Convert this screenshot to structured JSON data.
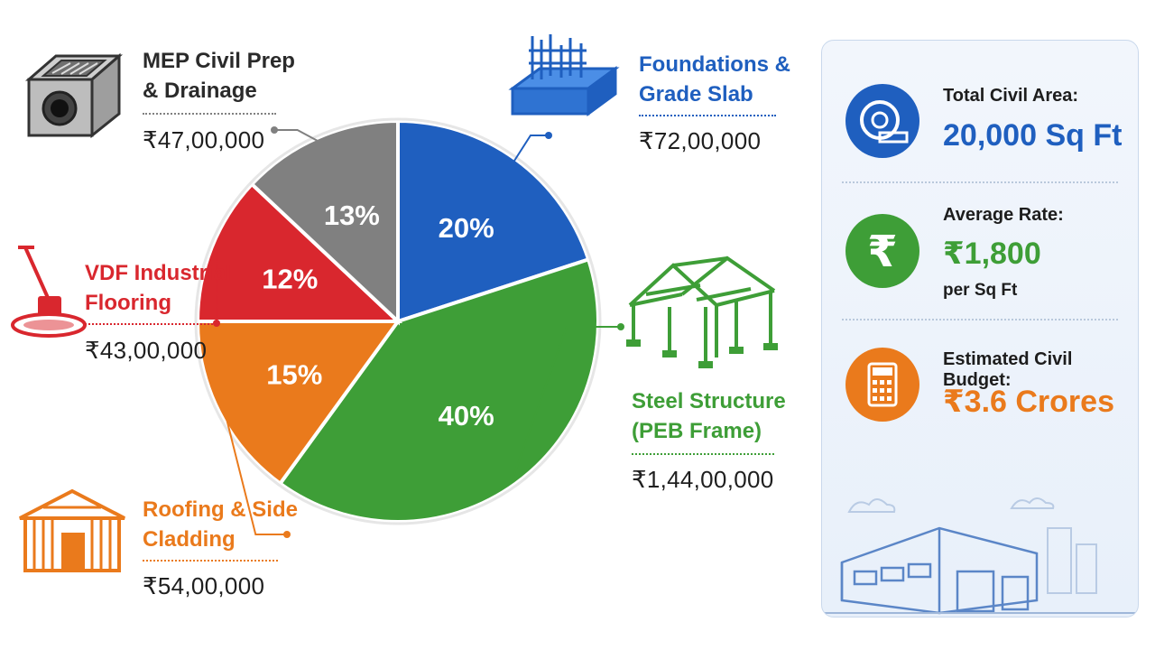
{
  "colors": {
    "blue": "#1f5fbf",
    "green": "#3e9e37",
    "orange": "#ea7a1c",
    "red": "#d9272e",
    "gray": "#808080"
  },
  "chart_data": {
    "type": "pie",
    "slices": [
      {
        "label": "Foundations & Grade Slab",
        "value": 20,
        "percent_label": "20%",
        "amount": "₹72,00,000",
        "color": "#1f5fbf",
        "icon": "foundation-rebar-icon"
      },
      {
        "label": "Steel Structure (PEB Frame)",
        "value": 40,
        "percent_label": "40%",
        "amount": "₹1,44,00,000",
        "color": "#3e9e37",
        "icon": "steel-frame-icon"
      },
      {
        "label": "Roofing & Side Cladding",
        "value": 15,
        "percent_label": "15%",
        "amount": "₹54,00,000",
        "color": "#ea7a1c",
        "icon": "shed-cladding-icon"
      },
      {
        "label": "VDF Industrial Flooring",
        "value": 12,
        "percent_label": "12%",
        "amount": "₹43,00,000",
        "color": "#d9272e",
        "icon": "floor-trowel-icon"
      },
      {
        "label": "MEP Civil Prep & Drainage",
        "value": 13,
        "percent_label": "13%",
        "amount": "₹47,00,000",
        "color": "#808080",
        "icon": "drain-chamber-icon"
      }
    ]
  },
  "labels": {
    "foundations": "Foundations &\nGrade Slab",
    "steel": "Steel Structure\n(PEB Frame)",
    "roofing": "Roofing & Side\nCladding",
    "vdf": "VDF Industrial\nFlooring",
    "mep": "MEP Civil Prep\n& Drainage"
  },
  "summary": {
    "area": {
      "label": "Total Civil Area:",
      "value": "20,000 Sq Ft",
      "icon": "measuring-tape-icon"
    },
    "rate": {
      "label": "Average Rate:",
      "value": "₹1,800",
      "sub": "per Sq Ft",
      "icon": "rupee-icon"
    },
    "budget": {
      "label": "Estimated Civil Budget:",
      "value": "₹3.6 Crores",
      "icon": "calculator-icon"
    },
    "illustration": "warehouse-building-icon"
  }
}
